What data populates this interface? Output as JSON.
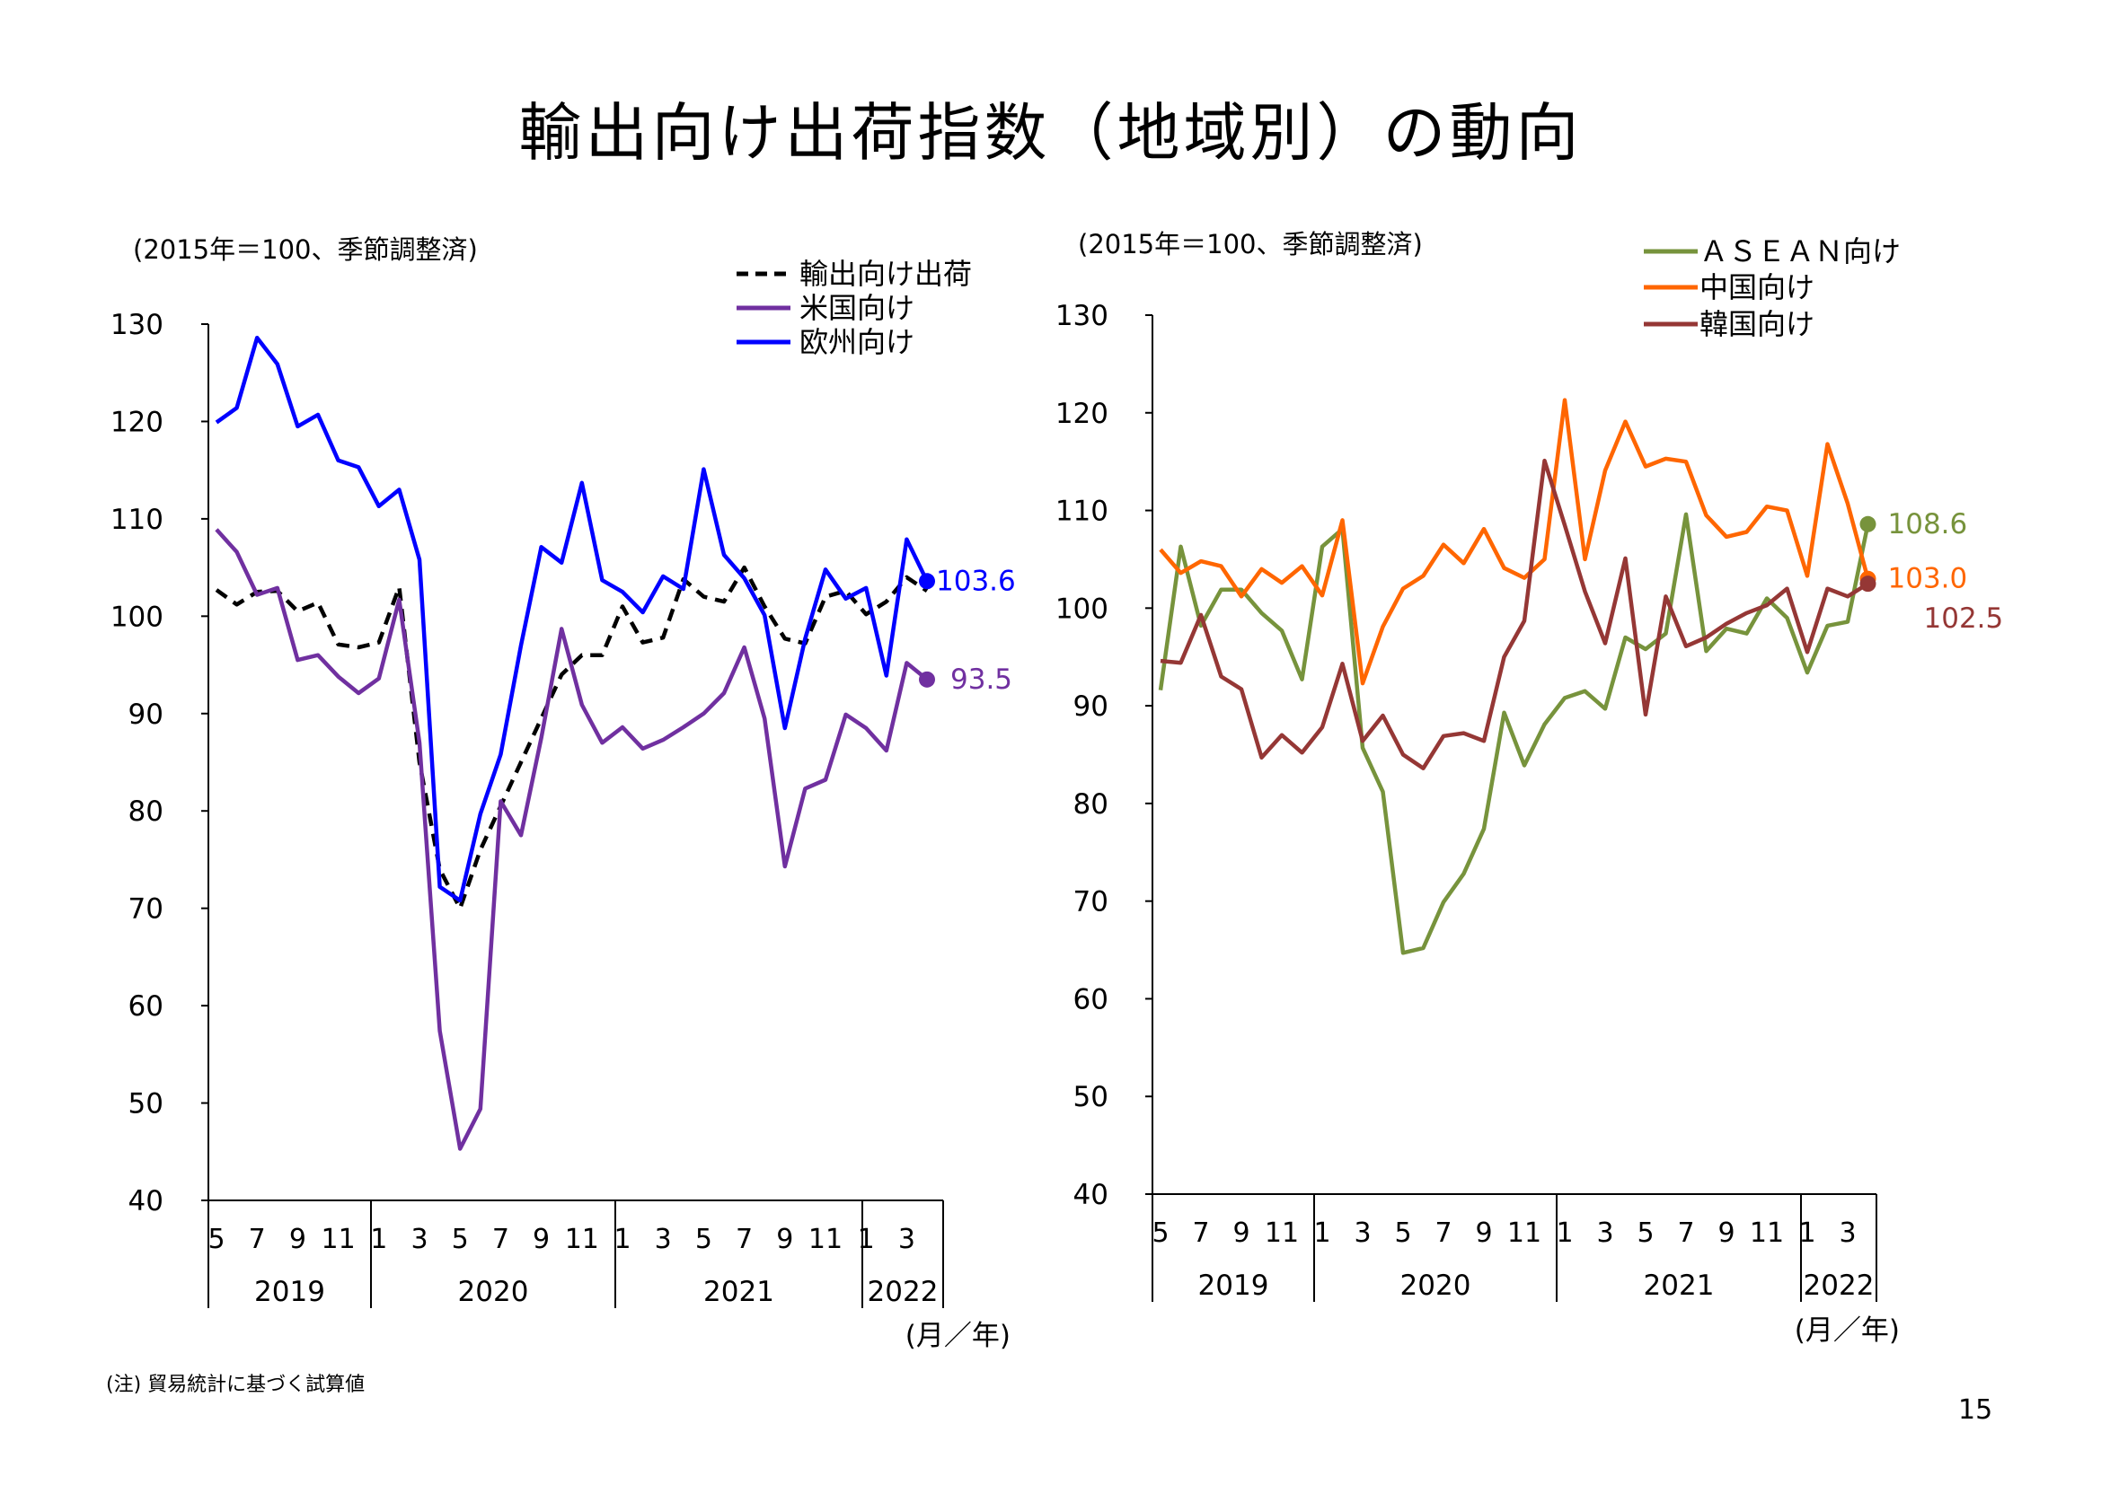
{
  "title": "輸出向け出荷指数（地域別）の動向",
  "footnote": "(注) 貿易統計に基づく試算値",
  "page_number": "15",
  "chart_data": [
    {
      "type": "line",
      "unit_label": "(2015年＝100、季節調整済)",
      "unit_x_label": "(月／年)",
      "ylim": [
        40,
        130
      ],
      "yticks": [
        "130",
        "120",
        "110",
        "100",
        "90",
        "80",
        "70",
        "60",
        "50",
        "40"
      ],
      "x_tick_labels": [
        "5",
        "7",
        "9",
        "11",
        "1",
        "3",
        "5",
        "7",
        "9",
        "11",
        "1",
        "3",
        "5",
        "7",
        "9",
        "11",
        "1",
        "3"
      ],
      "year_labels": [
        "2019",
        "2020",
        "2021",
        "2022"
      ],
      "x": [
        "2019-05",
        "2019-06",
        "2019-07",
        "2019-08",
        "2019-09",
        "2019-10",
        "2019-11",
        "2019-12",
        "2020-01",
        "2020-02",
        "2020-03",
        "2020-04",
        "2020-05",
        "2020-06",
        "2020-07",
        "2020-08",
        "2020-09",
        "2020-10",
        "2020-11",
        "2020-12",
        "2021-01",
        "2021-02",
        "2021-03",
        "2021-04",
        "2021-05",
        "2021-06",
        "2021-07",
        "2021-08",
        "2021-09",
        "2021-10",
        "2021-11",
        "2021-12",
        "2022-01",
        "2022-02",
        "2022-03",
        "2022-04"
      ],
      "series": [
        {
          "name": "輸出向け出荷",
          "color": "#000000",
          "style": "dashed",
          "values": [
            102.7,
            101.2,
            102.5,
            102.6,
            100.5,
            101.4,
            97.1,
            96.8,
            97.3,
            103.0,
            85.0,
            74.0,
            70.0,
            76.0,
            80.5,
            85.0,
            89.5,
            94.0,
            96.0,
            96.0,
            101.0,
            97.3,
            97.8,
            103.8,
            102.0,
            101.5,
            105.0,
            101.0,
            97.7,
            97.2,
            102.0,
            102.6,
            100.2,
            101.5,
            104.0,
            102.6
          ]
        },
        {
          "name": "米国向け",
          "color": "#7030a0",
          "style": "solid",
          "values": [
            108.9,
            106.6,
            102.2,
            102.9,
            95.5,
            96.0,
            93.8,
            92.1,
            93.6,
            101.7,
            87.0,
            57.4,
            45.3,
            49.4,
            81.0,
            77.5,
            87.5,
            98.7,
            90.9,
            87.0,
            88.6,
            86.4,
            87.3,
            88.6,
            90.0,
            92.1,
            96.8,
            89.5,
            74.3,
            82.3,
            83.2,
            89.9,
            88.5,
            86.2,
            95.2,
            93.5
          ]
        },
        {
          "name": "欧州向け",
          "color": "#0000ff",
          "style": "solid",
          "values": [
            119.9,
            121.4,
            128.6,
            125.9,
            119.5,
            120.7,
            116.0,
            115.3,
            111.3,
            113.0,
            105.8,
            72.2,
            70.8,
            79.7,
            85.8,
            97.0,
            107.1,
            105.5,
            113.7,
            103.7,
            102.5,
            100.4,
            104.1,
            102.8,
            115.1,
            106.3,
            103.9,
            100.1,
            88.5,
            97.7,
            104.8,
            101.8,
            102.9,
            93.9,
            107.9,
            103.6
          ]
        }
      ],
      "end_labels": [
        {
          "series": "欧州向け",
          "text": "103.6",
          "color": "#0000ff"
        },
        {
          "series": "米国向け",
          "text": "93.5",
          "color": "#7030a0"
        }
      ]
    },
    {
      "type": "line",
      "unit_label": "(2015年＝100、季節調整済)",
      "unit_x_label": "(月／年)",
      "ylim": [
        40,
        130
      ],
      "yticks": [
        "130",
        "120",
        "110",
        "100",
        "90",
        "80",
        "70",
        "60",
        "50",
        "40"
      ],
      "x_tick_labels": [
        "5",
        "7",
        "9",
        "11",
        "1",
        "3",
        "5",
        "7",
        "9",
        "11",
        "1",
        "3",
        "5",
        "7",
        "9",
        "11",
        "1",
        "3"
      ],
      "year_labels": [
        "2019",
        "2020",
        "2021",
        "2022"
      ],
      "x": [
        "2019-05",
        "2019-06",
        "2019-07",
        "2019-08",
        "2019-09",
        "2019-10",
        "2019-11",
        "2019-12",
        "2020-01",
        "2020-02",
        "2020-03",
        "2020-04",
        "2020-05",
        "2020-06",
        "2020-07",
        "2020-08",
        "2020-09",
        "2020-10",
        "2020-11",
        "2020-12",
        "2021-01",
        "2021-02",
        "2021-03",
        "2021-04",
        "2021-05",
        "2021-06",
        "2021-07",
        "2021-08",
        "2021-09",
        "2021-10",
        "2021-11",
        "2021-12",
        "2022-01",
        "2022-02",
        "2022-03",
        "2022-04"
      ],
      "series": [
        {
          "name": "ＡＳＥＡＮ向け",
          "color": "#77933c",
          "style": "solid",
          "values": [
            91.6,
            106.3,
            98.2,
            101.9,
            101.9,
            99.5,
            97.7,
            92.7,
            106.3,
            108.1,
            85.7,
            81.2,
            64.7,
            65.2,
            69.9,
            72.8,
            77.4,
            89.3,
            83.9,
            88.1,
            90.8,
            91.5,
            89.7,
            97.0,
            95.8,
            97.4,
            109.6,
            95.6,
            97.9,
            97.4,
            101.0,
            99.0,
            93.4,
            98.2,
            98.6,
            108.6
          ]
        },
        {
          "name": "中国向け",
          "color": "#ff6600",
          "style": "solid",
          "values": [
            106.0,
            103.6,
            104.8,
            104.3,
            101.2,
            104.0,
            102.6,
            104.3,
            101.3,
            109.0,
            92.3,
            98.1,
            102.0,
            103.3,
            106.5,
            104.6,
            108.1,
            104.1,
            103.1,
            105.0,
            121.3,
            105.0,
            114.1,
            119.1,
            114.5,
            115.3,
            115.0,
            109.5,
            107.3,
            107.8,
            110.4,
            110.0,
            103.3,
            116.8,
            110.7,
            103.0
          ]
        },
        {
          "name": "韓国向け",
          "color": "#953735",
          "style": "solid",
          "values": [
            94.6,
            94.4,
            99.3,
            93.0,
            91.7,
            84.7,
            87.0,
            85.2,
            87.8,
            94.3,
            86.4,
            89.0,
            85.0,
            83.6,
            86.9,
            87.2,
            86.4,
            95.0,
            98.7,
            115.1,
            108.5,
            101.7,
            96.4,
            105.1,
            89.1,
            101.2,
            96.1,
            97.0,
            98.4,
            99.5,
            100.3,
            102.0,
            95.5,
            102.0,
            101.2,
            102.5
          ]
        }
      ],
      "end_labels": [
        {
          "series": "ＡＳＥＡＮ向け",
          "text": "108.6",
          "color": "#77933c"
        },
        {
          "series": "中国向け",
          "text": "103.0",
          "color": "#ff6600"
        },
        {
          "series": "韓国向け",
          "text": "102.5",
          "color": "#953735"
        }
      ]
    }
  ]
}
